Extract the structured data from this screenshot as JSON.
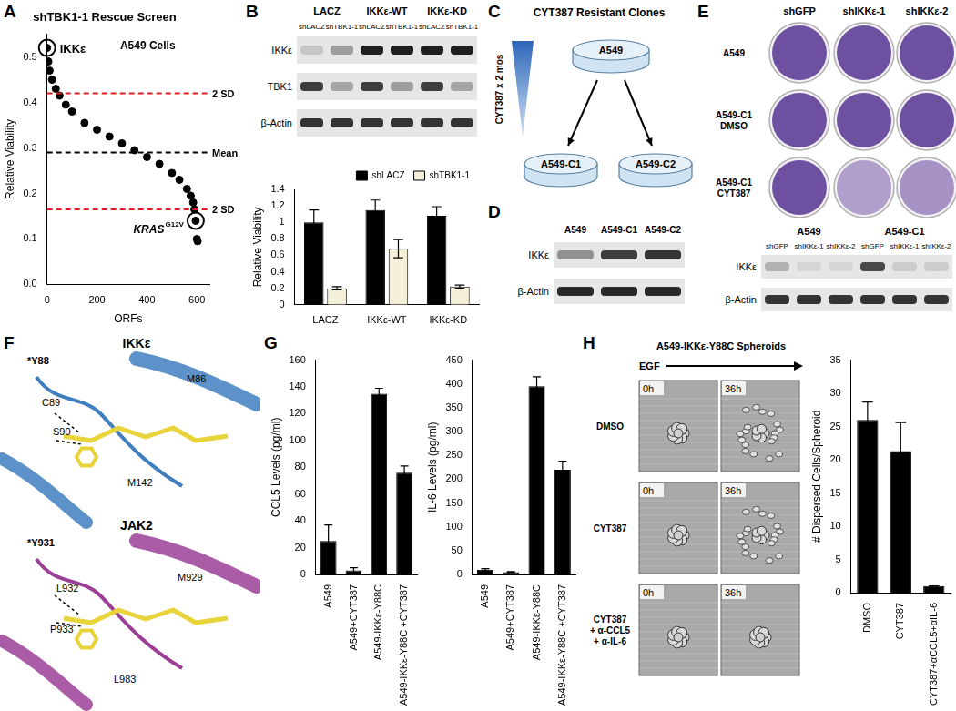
{
  "chart_data": [
    {
      "type": "scatter",
      "title": "shTBK1-1 Rescue Screen",
      "subtitle": "A549 Cells",
      "x_label": "ORFs",
      "y_label": "Relative Viability",
      "x": [
        0,
        5,
        10,
        20,
        35,
        50,
        75,
        100,
        150,
        200,
        250,
        300,
        350,
        400,
        450,
        500,
        530,
        560,
        575,
        585,
        590,
        595,
        600,
        603
      ],
      "values": [
        0.52,
        0.49,
        0.47,
        0.45,
        0.43,
        0.415,
        0.395,
        0.38,
        0.355,
        0.34,
        0.325,
        0.31,
        0.295,
        0.28,
        0.265,
        0.245,
        0.23,
        0.21,
        0.195,
        0.18,
        0.165,
        0.14,
        0.1,
        0.095
      ],
      "color": "#000000",
      "marker": "circle",
      "xlim": [
        0,
        650
      ],
      "xticks": [
        0,
        200,
        400,
        600
      ],
      "ylim": [
        0,
        0.55
      ],
      "yticks": [
        {
          "value": 0,
          "label": "0.0"
        },
        0.1,
        0.2,
        0.3,
        0.4,
        0.5
      ],
      "grid": false,
      "annotations": [
        {
          "type": "hline",
          "value": 0.42,
          "label": "2 SD",
          "color": "#e02020",
          "line_style": "dashed"
        },
        {
          "type": "hline",
          "value": 0.29,
          "label": "Mean",
          "color": "#000000",
          "line_style": "dashed"
        },
        {
          "type": "hline",
          "value": 0.165,
          "label": "2 SD",
          "color": "#e02020",
          "line_style": "dashed"
        },
        {
          "type": "circle",
          "x": 0,
          "y": 0.52,
          "label": "IKKε"
        },
        {
          "type": "circle",
          "x": 595,
          "y": 0.14,
          "label": "KRAS",
          "superscript": "G12V"
        }
      ]
    },
    {
      "type": "bar",
      "y_label": "Relative Viability",
      "categories": [
        "LACZ",
        "IKKε-WT",
        "IKKε-KD"
      ],
      "series": [
        {
          "name": "shLACZ",
          "color": "#000000",
          "values": [
            1.0,
            1.15,
            1.08
          ],
          "errors": [
            0.15,
            0.12,
            0.11
          ]
        },
        {
          "name": "shTBK1-1",
          "color": "#f3efd9",
          "values": [
            0.2,
            0.68,
            0.22
          ],
          "errors": [
            0.02,
            0.11,
            0.02
          ]
        }
      ],
      "ylim": [
        0,
        1.4
      ],
      "yticks": [
        0,
        0.2,
        0.4,
        0.6,
        0.8,
        1,
        1.2,
        1.4
      ],
      "legend": "top-right",
      "grid": false
    },
    {
      "type": "bar",
      "y_label": "CCL5 Levels (pg/ml)",
      "categories": [
        "A549",
        "A549+CYT387",
        "A549-IKKε-Y88C",
        "A549-IKKε-Y88C +CYT387"
      ],
      "values": [
        25,
        3,
        135,
        76
      ],
      "errors": [
        12,
        2,
        4,
        5
      ],
      "color": "#000000",
      "ylim": [
        0,
        160
      ],
      "yticks": [
        0,
        20,
        40,
        60,
        80,
        100,
        120,
        140,
        160
      ],
      "grid": false
    },
    {
      "type": "bar",
      "y_label": "IL-6 Levels (pg/ml)",
      "categories": [
        "A549",
        "A549+CYT387",
        "A549-IKKε-Y88C",
        "A549-IKKε-Y88C +CYT387"
      ],
      "values": [
        10,
        5,
        395,
        220
      ],
      "errors": [
        2,
        1,
        20,
        18
      ],
      "color": "#000000",
      "ylim": [
        0,
        450
      ],
      "yticks": [
        0,
        50,
        100,
        150,
        200,
        250,
        300,
        350,
        400,
        450
      ],
      "grid": false
    },
    {
      "type": "bar",
      "y_label": "# Dispersed Cells/Spheroid",
      "categories": [
        "DMSO",
        "CYT387",
        "CYT387+αCCL5+αIL-6"
      ],
      "values": [
        26,
        21.3,
        1
      ],
      "errors": [
        2.7,
        4.3,
        0
      ],
      "color": "#000000",
      "ylim": [
        0,
        35
      ],
      "yticks": [
        0,
        5,
        10,
        15,
        20,
        25,
        30,
        35
      ],
      "grid": false
    }
  ],
  "figure": {
    "panel_labels": [
      "A",
      "B",
      "C",
      "D",
      "E",
      "F",
      "G",
      "H"
    ],
    "panel_B_blot": {
      "groups": [
        "LACZ",
        "IKKε-WT",
        "IKKε-KD"
      ],
      "lanes": [
        "shLACZ",
        "shTBK1-1",
        "shLACZ",
        "shTBK1-1",
        "shLACZ",
        "shTBK1-1"
      ],
      "rows": [
        "IKKε",
        "TBK1",
        "β-Actin"
      ]
    },
    "panel_C": {
      "title": "CYT387 Resistant Clones",
      "parent": "A549",
      "treatment": "CYT387 x 2 mos",
      "clones": [
        "A549-C1",
        "A549-C2"
      ]
    },
    "panel_D_blot": {
      "lanes": [
        "A549",
        "A549-C1",
        "A549-C2"
      ],
      "rows": [
        "IKKε",
        "β-Actin"
      ]
    },
    "panel_E": {
      "columns": [
        "shGFP",
        "shIKKε-1",
        "shIKKε-2"
      ],
      "rows": [
        "A549",
        "A549-C1\nDMSO",
        "A549-C1\nCYT387"
      ],
      "blot": {
        "groups": [
          "A549",
          "A549-C1"
        ],
        "lanes": [
          "shGFP",
          "shIKKε-1",
          "shIKKε-2",
          "shGFP",
          "shIKKε-1",
          "shIKKε-2"
        ],
        "rows": [
          "IKKε",
          "β-Actin"
        ]
      }
    },
    "panel_F": {
      "structures": [
        {
          "name": "IKKε",
          "residues": [
            "*Y88",
            "M86",
            "C89",
            "S90",
            "M142"
          ]
        },
        {
          "name": "JAK2",
          "residues": [
            "*Y931",
            "M929",
            "L932",
            "P933",
            "L983"
          ]
        }
      ]
    },
    "panel_H": {
      "title": "A549-IKKε-Y88C Spheroids",
      "stimulus": "EGF",
      "rows": [
        "DMSO",
        "CYT387",
        "CYT387\n+ α-CCL5\n+ α-IL-6"
      ],
      "times": [
        "0h",
        "36h"
      ]
    }
  }
}
